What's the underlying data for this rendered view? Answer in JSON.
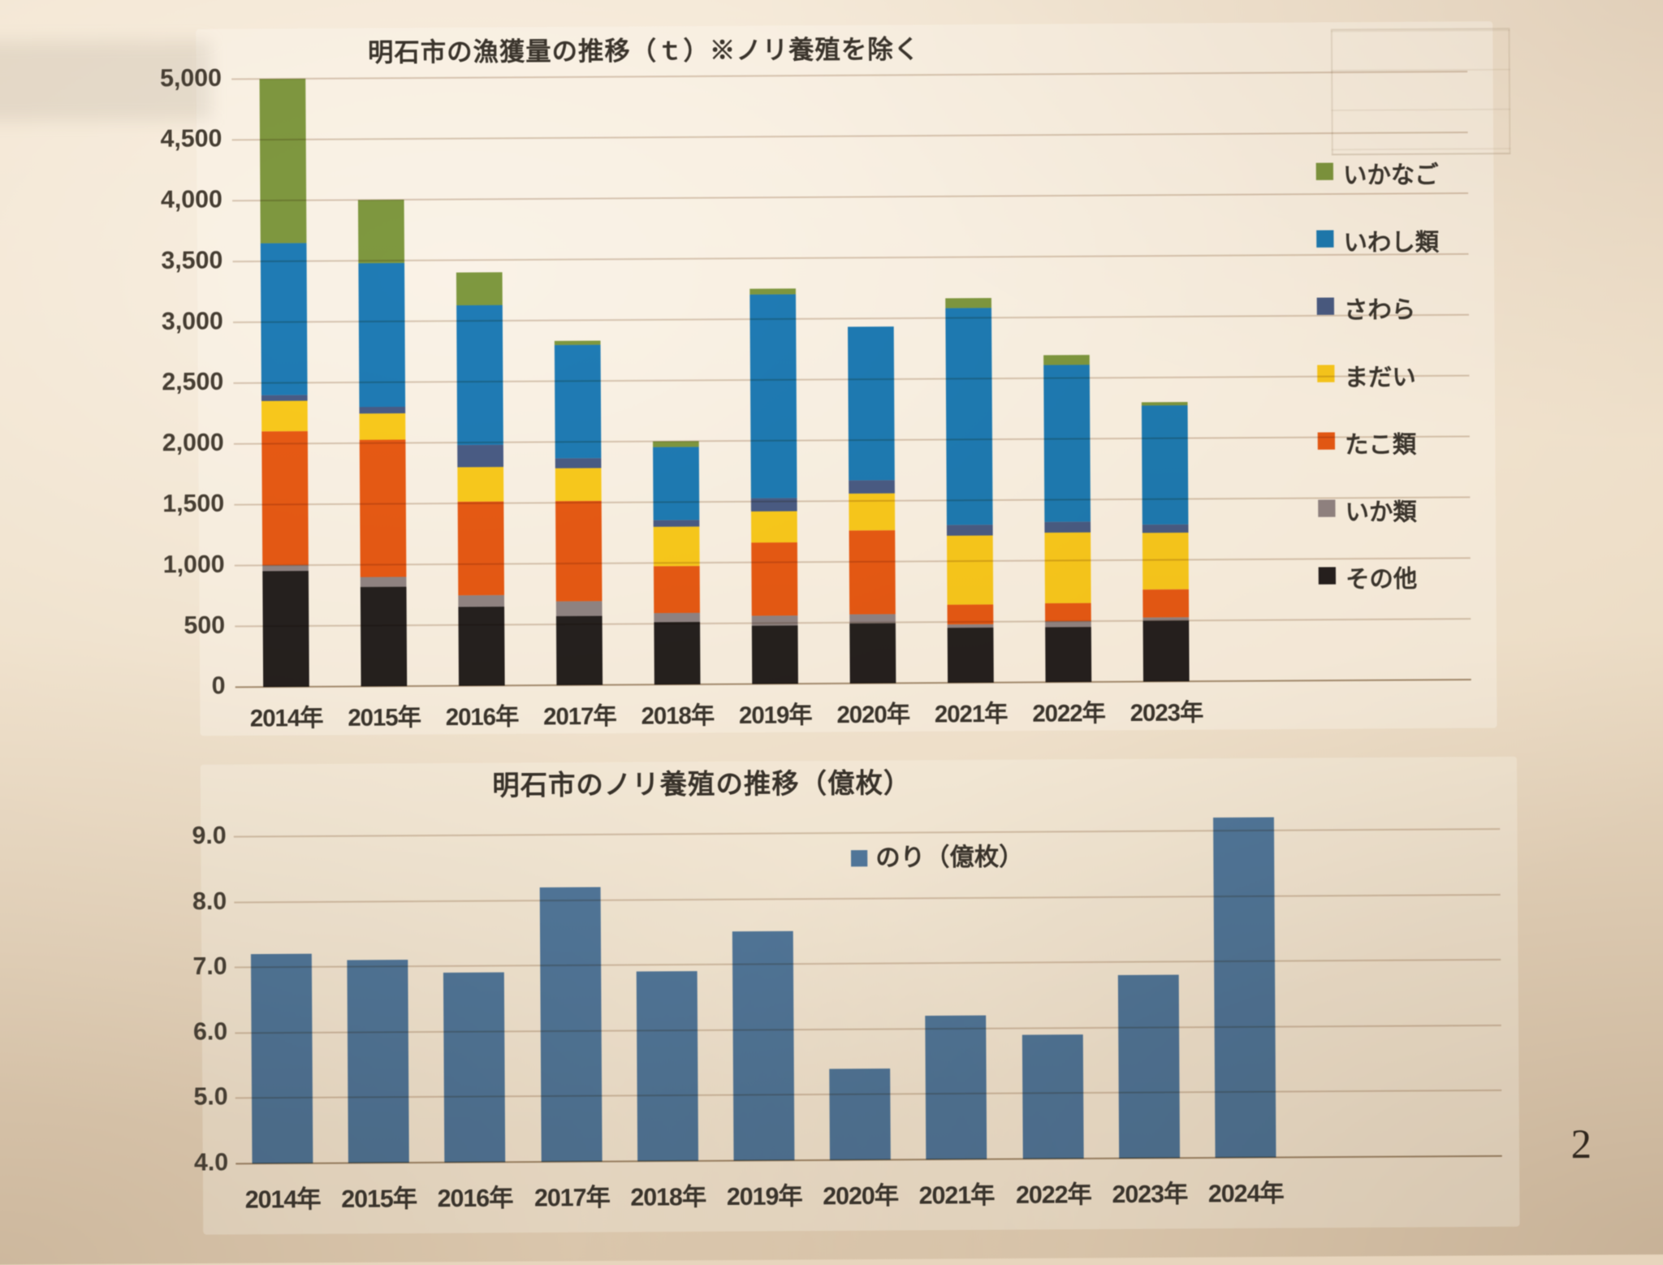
{
  "page": {
    "number": "2"
  },
  "chart_data": [
    {
      "type": "stacked-bar",
      "title": "明石市の漁獲量の推移（ｔ）※ノリ養殖を除く",
      "categories": [
        "2014年",
        "2015年",
        "2016年",
        "2017年",
        "2018年",
        "2019年",
        "2020年",
        "2021年",
        "2022年",
        "2023年"
      ],
      "series": [
        {
          "name": "その他",
          "color": "#262222",
          "values": [
            950,
            820,
            650,
            570,
            515,
            480,
            490,
            450,
            450,
            500
          ]
        },
        {
          "name": "いか類",
          "color": "#948c94",
          "values": [
            50,
            80,
            95,
            120,
            75,
            80,
            75,
            30,
            50,
            30
          ]
        },
        {
          "name": "たこ類",
          "color": "#ec5f16",
          "values": [
            1100,
            1130,
            770,
            825,
            380,
            600,
            690,
            160,
            150,
            230
          ]
        },
        {
          "name": "まだい",
          "color": "#fed51f",
          "values": [
            250,
            210,
            285,
            270,
            330,
            260,
            305,
            570,
            580,
            460
          ]
        },
        {
          "name": "さわら",
          "color": "#4b6194",
          "values": [
            50,
            60,
            180,
            80,
            50,
            110,
            110,
            90,
            90,
            70
          ]
        },
        {
          "name": "いわし類",
          "color": "#1f82c9",
          "values": [
            1250,
            1180,
            1150,
            935,
            600,
            1670,
            1260,
            1780,
            1290,
            980
          ]
        },
        {
          "name": "いかなご",
          "color": "#81a046",
          "values": [
            1350,
            520,
            270,
            30,
            50,
            50,
            0,
            80,
            80,
            30
          ]
        }
      ],
      "legend_order": [
        "いかなご",
        "いわし類",
        "さわら",
        "まだい",
        "たこ類",
        "いか類",
        "その他"
      ],
      "y_ticks": [
        "5,000",
        "4,500",
        "4,000",
        "3,500",
        "3,000",
        "2,500",
        "2,000",
        "1,500",
        "1,000",
        "500",
        "0"
      ],
      "ylim": [
        0,
        5000
      ],
      "grid": true,
      "legend_position": "right"
    },
    {
      "type": "bar",
      "title": "明石市のノリ養殖の推移（億枚）",
      "legend_label": "のり（億枚）",
      "color": "#5583ba",
      "categories": [
        "2014年",
        "2015年",
        "2016年",
        "2017年",
        "2018年",
        "2019年",
        "2020年",
        "2021年",
        "2022年",
        "2023年",
        "2024年"
      ],
      "values": [
        7.2,
        7.1,
        6.9,
        8.2,
        6.9,
        7.5,
        5.4,
        6.2,
        5.9,
        6.8,
        9.2
      ],
      "y_ticks": [
        "9.0",
        "8.0",
        "7.0",
        "6.0",
        "5.0",
        "4.0"
      ],
      "ylim": [
        4.0,
        9.0
      ],
      "grid": true,
      "legend_position": "top-right"
    }
  ]
}
